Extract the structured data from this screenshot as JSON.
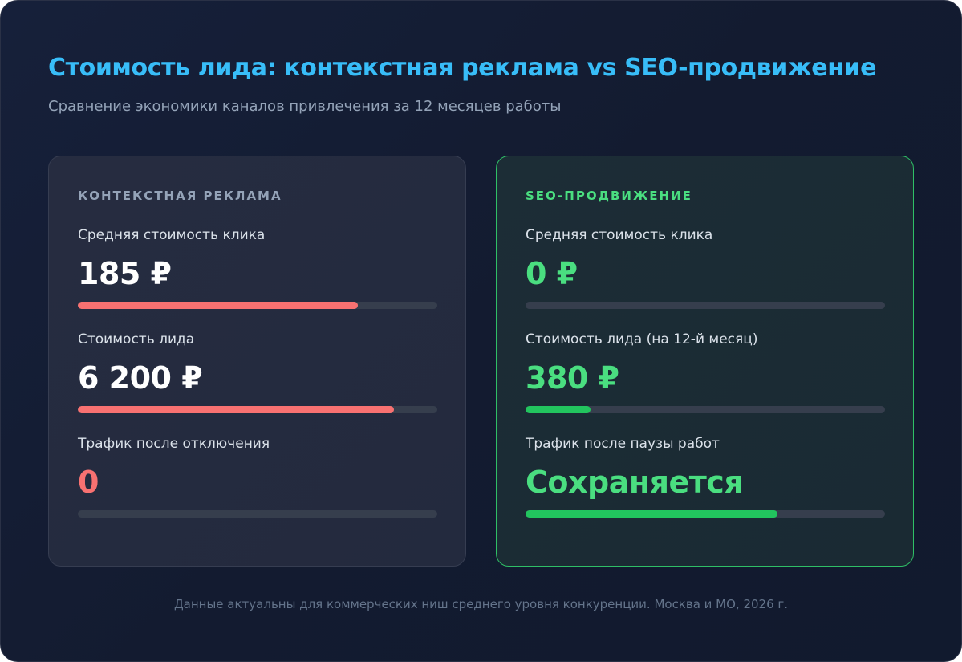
{
  "header": {
    "title": "Стоимость лида: контекстная реклама vs SEO-продвижение",
    "subtitle": "Сравнение экономики каналов привлечения за 12 месяцев работы"
  },
  "context_card": {
    "heading": "КОНТЕКСТНАЯ РЕКЛАМА",
    "metrics": [
      {
        "label": "Средняя стоимость клика",
        "value": "185 ₽",
        "bar_fraction": 0.78,
        "bar_color": "#f87171"
      },
      {
        "label": "Стоимость лида",
        "value": "6 200 ₽",
        "bar_fraction": 0.88,
        "bar_color": "#f87171"
      },
      {
        "label": "Трафик после отключения",
        "value": "0",
        "bar_fraction": 0.0,
        "bar_color": "#f87171"
      }
    ]
  },
  "seo_card": {
    "heading": "SEO-ПРОДВИЖЕНИЕ",
    "metrics": [
      {
        "label": "Средняя стоимость клика",
        "value": "0 ₽",
        "bar_fraction": 0.0,
        "bar_color": "#22c55e"
      },
      {
        "label": "Стоимость лида (на 12-й месяц)",
        "value": "380 ₽",
        "bar_fraction": 0.18,
        "bar_color": "#22c55e"
      },
      {
        "label": "Трафик после паузы работ",
        "value": "Сохраняется",
        "bar_fraction": 0.7,
        "bar_color": "#22c55e"
      }
    ]
  },
  "footer": {
    "note": "Данные актуальны для коммерческих ниш среднего уровня конкуренции. Москва и МО, 2026 г."
  },
  "colors": {
    "accent_title": "#38bdf8",
    "negative": "#f87171",
    "positive": "#4ade80"
  }
}
